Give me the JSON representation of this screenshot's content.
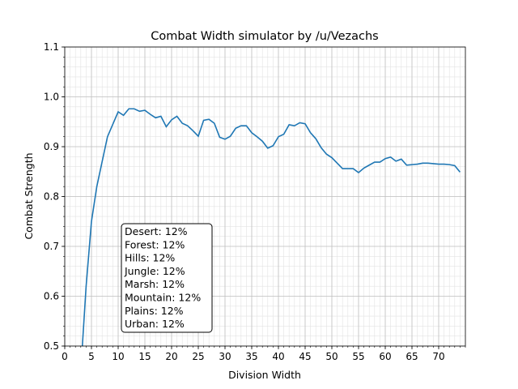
{
  "chart_data": {
    "type": "line",
    "title": "Combat Width simulator by /u/Vezachs",
    "xlabel": "Division Width",
    "ylabel": "Combat Strength",
    "xlim": [
      0,
      75
    ],
    "ylim": [
      0.5,
      1.1
    ],
    "xticks": [
      0,
      5,
      10,
      15,
      20,
      25,
      30,
      35,
      40,
      45,
      50,
      55,
      60,
      65,
      70
    ],
    "yticks": [
      0.5,
      0.6,
      0.7,
      0.8,
      0.9,
      1.0,
      1.1
    ],
    "ytick_labels": [
      "0.5",
      "0.6",
      "0.7",
      "0.8",
      "0.9",
      "1.0",
      "1.1"
    ],
    "grid": "major and minor",
    "color": "#1f77b4",
    "x": [
      3,
      4,
      5,
      6,
      7,
      8,
      9,
      10,
      11,
      12,
      13,
      14,
      15,
      16,
      17,
      18,
      19,
      20,
      21,
      22,
      23,
      24,
      25,
      26,
      27,
      28,
      29,
      30,
      31,
      32,
      33,
      34,
      35,
      36,
      37,
      38,
      39,
      40,
      41,
      42,
      43,
      44,
      45,
      46,
      47,
      48,
      49,
      50,
      51,
      52,
      53,
      54,
      55,
      56,
      57,
      58,
      59,
      60,
      61,
      62,
      63,
      64,
      65,
      66,
      67,
      68,
      69,
      70,
      71,
      72,
      73,
      74
    ],
    "y": [
      0.45,
      0.62,
      0.75,
      0.82,
      0.87,
      0.92,
      0.945,
      0.97,
      0.963,
      0.976,
      0.976,
      0.971,
      0.973,
      0.965,
      0.958,
      0.961,
      0.94,
      0.954,
      0.961,
      0.947,
      0.942,
      0.932,
      0.921,
      0.953,
      0.955,
      0.947,
      0.919,
      0.915,
      0.921,
      0.937,
      0.942,
      0.942,
      0.928,
      0.92,
      0.911,
      0.897,
      0.902,
      0.92,
      0.925,
      0.944,
      0.942,
      0.948,
      0.946,
      0.928,
      0.916,
      0.898,
      0.885,
      0.878,
      0.867,
      0.856,
      0.856,
      0.856,
      0.848,
      0.857,
      0.863,
      0.869,
      0.869,
      0.876,
      0.879,
      0.871,
      0.875,
      0.863,
      0.864,
      0.865,
      0.867,
      0.867,
      0.866,
      0.865,
      0.865,
      0.864,
      0.862,
      0.849
    ],
    "annotation": [
      "Desert: 12%",
      "Forest: 12%",
      "Hills: 12%",
      "Jungle: 12%",
      "Marsh: 12%",
      "Mountain: 12%",
      "Plains: 12%",
      "Urban: 12%"
    ]
  }
}
